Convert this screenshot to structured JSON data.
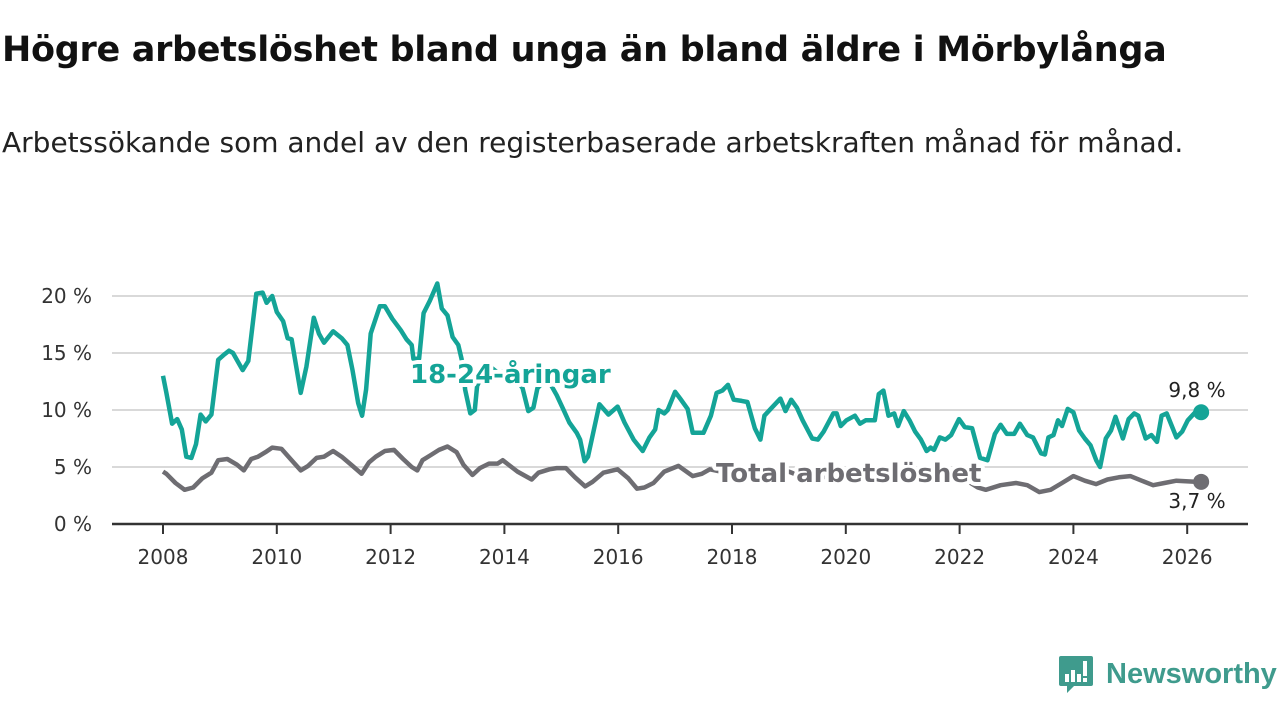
{
  "title": "Högre arbetslöshet bland unga än bland äldre i Mörbylånga",
  "subtitle": "Arbetssökande som andel av den registerbaserade arbetskraften månad för månad.",
  "brand": "Newsworthy",
  "colors": {
    "youth": "#14a497",
    "total": "#6e6d72",
    "brand": "#3f9b8d"
  },
  "chart_data": {
    "type": "line",
    "title": "Högre arbetslöshet bland unga än bland äldre i Mörbylånga",
    "xlabel": "",
    "ylabel": "",
    "xlim": [
      2007.9,
      2026.5
    ],
    "ylim": [
      0,
      20
    ],
    "x_ticks": [
      2008,
      2010,
      2012,
      2014,
      2016,
      2018,
      2020,
      2022,
      2024,
      2026
    ],
    "x_tick_labels": [
      "2008",
      "2010",
      "2012",
      "2014",
      "2016",
      "2018",
      "2020",
      "2022",
      "2024",
      "2026"
    ],
    "y_ticks": [
      0,
      5,
      10,
      15,
      20
    ],
    "y_tick_labels": [
      "0 %",
      "5 %",
      "10 %",
      "15 %",
      "20 %"
    ],
    "grid": true,
    "series": [
      {
        "name": "18-24-åringar",
        "end_label": "9,8 %",
        "points": [
          [
            2008.0,
            13.0
          ],
          [
            2008.06,
            11.5
          ],
          [
            2008.16,
            8.8
          ],
          [
            2008.25,
            9.2
          ],
          [
            2008.33,
            8.3
          ],
          [
            2008.41,
            5.9
          ],
          [
            2008.5,
            5.8
          ],
          [
            2008.58,
            7.0
          ],
          [
            2008.66,
            9.6
          ],
          [
            2008.75,
            9.0
          ],
          [
            2008.85,
            9.6
          ],
          [
            2008.97,
            14.4
          ],
          [
            2009.06,
            14.8
          ],
          [
            2009.16,
            15.2
          ],
          [
            2009.23,
            15.0
          ],
          [
            2009.31,
            14.3
          ],
          [
            2009.4,
            13.5
          ],
          [
            2009.5,
            14.3
          ],
          [
            2009.64,
            20.2
          ],
          [
            2009.75,
            20.3
          ],
          [
            2009.82,
            19.4
          ],
          [
            2009.92,
            20.0
          ],
          [
            2010.0,
            18.6
          ],
          [
            2010.11,
            17.8
          ],
          [
            2010.19,
            16.3
          ],
          [
            2010.26,
            16.2
          ],
          [
            2010.42,
            11.5
          ],
          [
            2010.52,
            13.8
          ],
          [
            2010.65,
            18.1
          ],
          [
            2010.74,
            16.7
          ],
          [
            2010.83,
            15.9
          ],
          [
            2010.99,
            16.9
          ],
          [
            2011.14,
            16.3
          ],
          [
            2011.24,
            15.7
          ],
          [
            2011.33,
            13.5
          ],
          [
            2011.43,
            10.6
          ],
          [
            2011.5,
            9.5
          ],
          [
            2011.57,
            11.8
          ],
          [
            2011.65,
            16.7
          ],
          [
            2011.81,
            19.1
          ],
          [
            2011.9,
            19.1
          ],
          [
            2012.03,
            18.0
          ],
          [
            2012.18,
            17.0
          ],
          [
            2012.28,
            16.2
          ],
          [
            2012.37,
            15.7
          ],
          [
            2012.4,
            14.5
          ],
          [
            2012.5,
            14.5
          ],
          [
            2012.58,
            18.5
          ],
          [
            2012.69,
            19.6
          ],
          [
            2012.82,
            21.1
          ],
          [
            2012.9,
            18.9
          ],
          [
            2013.0,
            18.3
          ],
          [
            2013.09,
            16.4
          ],
          [
            2013.19,
            15.7
          ],
          [
            2013.28,
            13.8
          ],
          [
            2013.31,
            11.8
          ],
          [
            2013.4,
            9.7
          ],
          [
            2013.48,
            10.0
          ],
          [
            2013.52,
            12.1
          ],
          [
            2013.7,
            14.0
          ],
          [
            2013.9,
            13.2
          ],
          [
            2014.1,
            13.6
          ],
          [
            2014.32,
            11.9
          ],
          [
            2014.42,
            9.9
          ],
          [
            2014.51,
            10.2
          ],
          [
            2014.58,
            11.9
          ],
          [
            2014.75,
            12.8
          ],
          [
            2014.92,
            11.3
          ],
          [
            2015.05,
            9.9
          ],
          [
            2015.14,
            8.9
          ],
          [
            2015.27,
            8.0
          ],
          [
            2015.33,
            7.4
          ],
          [
            2015.41,
            5.5
          ],
          [
            2015.47,
            5.9
          ],
          [
            2015.67,
            10.5
          ],
          [
            2015.83,
            9.6
          ],
          [
            2015.99,
            10.3
          ],
          [
            2016.11,
            8.9
          ],
          [
            2016.27,
            7.4
          ],
          [
            2016.43,
            6.4
          ],
          [
            2016.55,
            7.6
          ],
          [
            2016.65,
            8.3
          ],
          [
            2016.71,
            10.0
          ],
          [
            2016.81,
            9.7
          ],
          [
            2016.87,
            10.0
          ],
          [
            2017.0,
            11.6
          ],
          [
            2017.09,
            11.0
          ],
          [
            2017.22,
            10.1
          ],
          [
            2017.31,
            8.0
          ],
          [
            2017.5,
            8.0
          ],
          [
            2017.63,
            9.5
          ],
          [
            2017.73,
            11.5
          ],
          [
            2017.83,
            11.7
          ],
          [
            2017.93,
            12.2
          ],
          [
            2018.03,
            10.9
          ],
          [
            2018.17,
            10.8
          ],
          [
            2018.27,
            10.7
          ],
          [
            2018.4,
            8.4
          ],
          [
            2018.5,
            7.4
          ],
          [
            2018.57,
            9.5
          ],
          [
            2018.7,
            10.2
          ],
          [
            2018.85,
            11.0
          ],
          [
            2018.94,
            9.9
          ],
          [
            2019.04,
            10.9
          ],
          [
            2019.14,
            10.2
          ],
          [
            2019.24,
            9.1
          ],
          [
            2019.41,
            7.5
          ],
          [
            2019.51,
            7.4
          ],
          [
            2019.61,
            8.1
          ],
          [
            2019.78,
            9.7
          ],
          [
            2019.84,
            9.7
          ],
          [
            2019.91,
            8.6
          ],
          [
            2020.01,
            9.1
          ],
          [
            2020.16,
            9.5
          ],
          [
            2020.25,
            8.8
          ],
          [
            2020.35,
            9.1
          ],
          [
            2020.51,
            9.1
          ],
          [
            2020.58,
            11.4
          ],
          [
            2020.66,
            11.7
          ],
          [
            2020.75,
            9.5
          ],
          [
            2020.85,
            9.7
          ],
          [
            2020.92,
            8.6
          ],
          [
            2021.02,
            9.9
          ],
          [
            2021.12,
            9.1
          ],
          [
            2021.22,
            8.1
          ],
          [
            2021.32,
            7.4
          ],
          [
            2021.42,
            6.4
          ],
          [
            2021.49,
            6.7
          ],
          [
            2021.55,
            6.5
          ],
          [
            2021.65,
            7.6
          ],
          [
            2021.75,
            7.4
          ],
          [
            2021.85,
            7.8
          ],
          [
            2021.99,
            9.2
          ],
          [
            2022.09,
            8.5
          ],
          [
            2022.22,
            8.4
          ],
          [
            2022.36,
            5.8
          ],
          [
            2022.49,
            5.6
          ],
          [
            2022.62,
            7.9
          ],
          [
            2022.72,
            8.7
          ],
          [
            2022.83,
            7.9
          ],
          [
            2022.96,
            7.9
          ],
          [
            2023.06,
            8.8
          ],
          [
            2023.19,
            7.8
          ],
          [
            2023.29,
            7.6
          ],
          [
            2023.43,
            6.2
          ],
          [
            2023.5,
            6.1
          ],
          [
            2023.56,
            7.6
          ],
          [
            2023.65,
            7.8
          ],
          [
            2023.73,
            9.1
          ],
          [
            2023.8,
            8.6
          ],
          [
            2023.9,
            10.1
          ],
          [
            2024.0,
            9.8
          ],
          [
            2024.1,
            8.2
          ],
          [
            2024.2,
            7.5
          ],
          [
            2024.3,
            6.9
          ],
          [
            2024.4,
            5.6
          ],
          [
            2024.47,
            5.0
          ],
          [
            2024.57,
            7.5
          ],
          [
            2024.66,
            8.2
          ],
          [
            2024.74,
            9.4
          ],
          [
            2024.87,
            7.5
          ],
          [
            2024.97,
            9.2
          ],
          [
            2025.07,
            9.7
          ],
          [
            2025.14,
            9.5
          ],
          [
            2025.27,
            7.5
          ],
          [
            2025.37,
            7.8
          ],
          [
            2025.47,
            7.2
          ],
          [
            2025.55,
            9.5
          ],
          [
            2025.64,
            9.7
          ],
          [
            2025.81,
            7.6
          ],
          [
            2025.91,
            8.1
          ],
          [
            2026.01,
            9.1
          ],
          [
            2026.14,
            9.8
          ]
        ]
      },
      {
        "name": "Total arbetslöshet",
        "end_label": "3,7 %",
        "points": [
          [
            2008.0,
            4.6
          ],
          [
            2008.06,
            4.4
          ],
          [
            2008.22,
            3.6
          ],
          [
            2008.38,
            3.0
          ],
          [
            2008.53,
            3.2
          ],
          [
            2008.69,
            4.0
          ],
          [
            2008.85,
            4.5
          ],
          [
            2008.97,
            5.6
          ],
          [
            2009.13,
            5.7
          ],
          [
            2009.3,
            5.2
          ],
          [
            2009.42,
            4.7
          ],
          [
            2009.55,
            5.7
          ],
          [
            2009.67,
            5.9
          ],
          [
            2009.8,
            6.3
          ],
          [
            2009.92,
            6.7
          ],
          [
            2010.08,
            6.6
          ],
          [
            2010.24,
            5.7
          ],
          [
            2010.42,
            4.7
          ],
          [
            2010.55,
            5.1
          ],
          [
            2010.7,
            5.8
          ],
          [
            2010.83,
            5.9
          ],
          [
            2010.99,
            6.4
          ],
          [
            2011.14,
            5.9
          ],
          [
            2011.33,
            5.1
          ],
          [
            2011.49,
            4.4
          ],
          [
            2011.62,
            5.4
          ],
          [
            2011.74,
            5.9
          ],
          [
            2011.9,
            6.4
          ],
          [
            2012.06,
            6.5
          ],
          [
            2012.22,
            5.7
          ],
          [
            2012.37,
            5.0
          ],
          [
            2012.47,
            4.7
          ],
          [
            2012.56,
            5.6
          ],
          [
            2012.69,
            6.0
          ],
          [
            2012.85,
            6.5
          ],
          [
            2013.0,
            6.8
          ],
          [
            2013.16,
            6.3
          ],
          [
            2013.28,
            5.2
          ],
          [
            2013.44,
            4.3
          ],
          [
            2013.57,
            4.9
          ],
          [
            2013.73,
            5.3
          ],
          [
            2013.88,
            5.3
          ],
          [
            2013.97,
            5.6
          ],
          [
            2014.23,
            4.6
          ],
          [
            2014.48,
            3.9
          ],
          [
            2014.6,
            4.5
          ],
          [
            2014.79,
            4.8
          ],
          [
            2014.92,
            4.9
          ],
          [
            2015.08,
            4.9
          ],
          [
            2015.24,
            4.1
          ],
          [
            2015.42,
            3.3
          ],
          [
            2015.55,
            3.7
          ],
          [
            2015.74,
            4.5
          ],
          [
            2015.99,
            4.8
          ],
          [
            2016.18,
            4.0
          ],
          [
            2016.33,
            3.1
          ],
          [
            2016.46,
            3.2
          ],
          [
            2016.62,
            3.6
          ],
          [
            2016.81,
            4.6
          ],
          [
            2017.06,
            5.1
          ],
          [
            2017.31,
            4.2
          ],
          [
            2017.47,
            4.4
          ],
          [
            2017.61,
            4.8
          ],
          [
            2017.8,
            4.6
          ],
          [
            2018.0,
            4.9
          ],
          [
            2018.4,
            4.0
          ],
          [
            2018.8,
            4.5
          ],
          [
            2019.0,
            4.6
          ],
          [
            2019.4,
            3.8
          ],
          [
            2019.8,
            4.4
          ],
          [
            2020.0,
            4.6
          ],
          [
            2020.4,
            4.8
          ],
          [
            2020.8,
            4.9
          ],
          [
            2021.0,
            4.8
          ],
          [
            2021.4,
            4.0
          ],
          [
            2021.8,
            4.1
          ],
          [
            2022.0,
            4.2
          ],
          [
            2022.32,
            3.2
          ],
          [
            2022.46,
            3.0
          ],
          [
            2022.72,
            3.4
          ],
          [
            2022.99,
            3.6
          ],
          [
            2023.19,
            3.4
          ],
          [
            2023.4,
            2.8
          ],
          [
            2023.6,
            3.0
          ],
          [
            2023.8,
            3.6
          ],
          [
            2024.0,
            4.2
          ],
          [
            2024.2,
            3.8
          ],
          [
            2024.4,
            3.5
          ],
          [
            2024.6,
            3.9
          ],
          [
            2024.8,
            4.1
          ],
          [
            2025.0,
            4.2
          ],
          [
            2025.2,
            3.8
          ],
          [
            2025.4,
            3.4
          ],
          [
            2025.6,
            3.6
          ],
          [
            2025.81,
            3.8
          ],
          [
            2026.14,
            3.7
          ]
        ]
      }
    ]
  }
}
